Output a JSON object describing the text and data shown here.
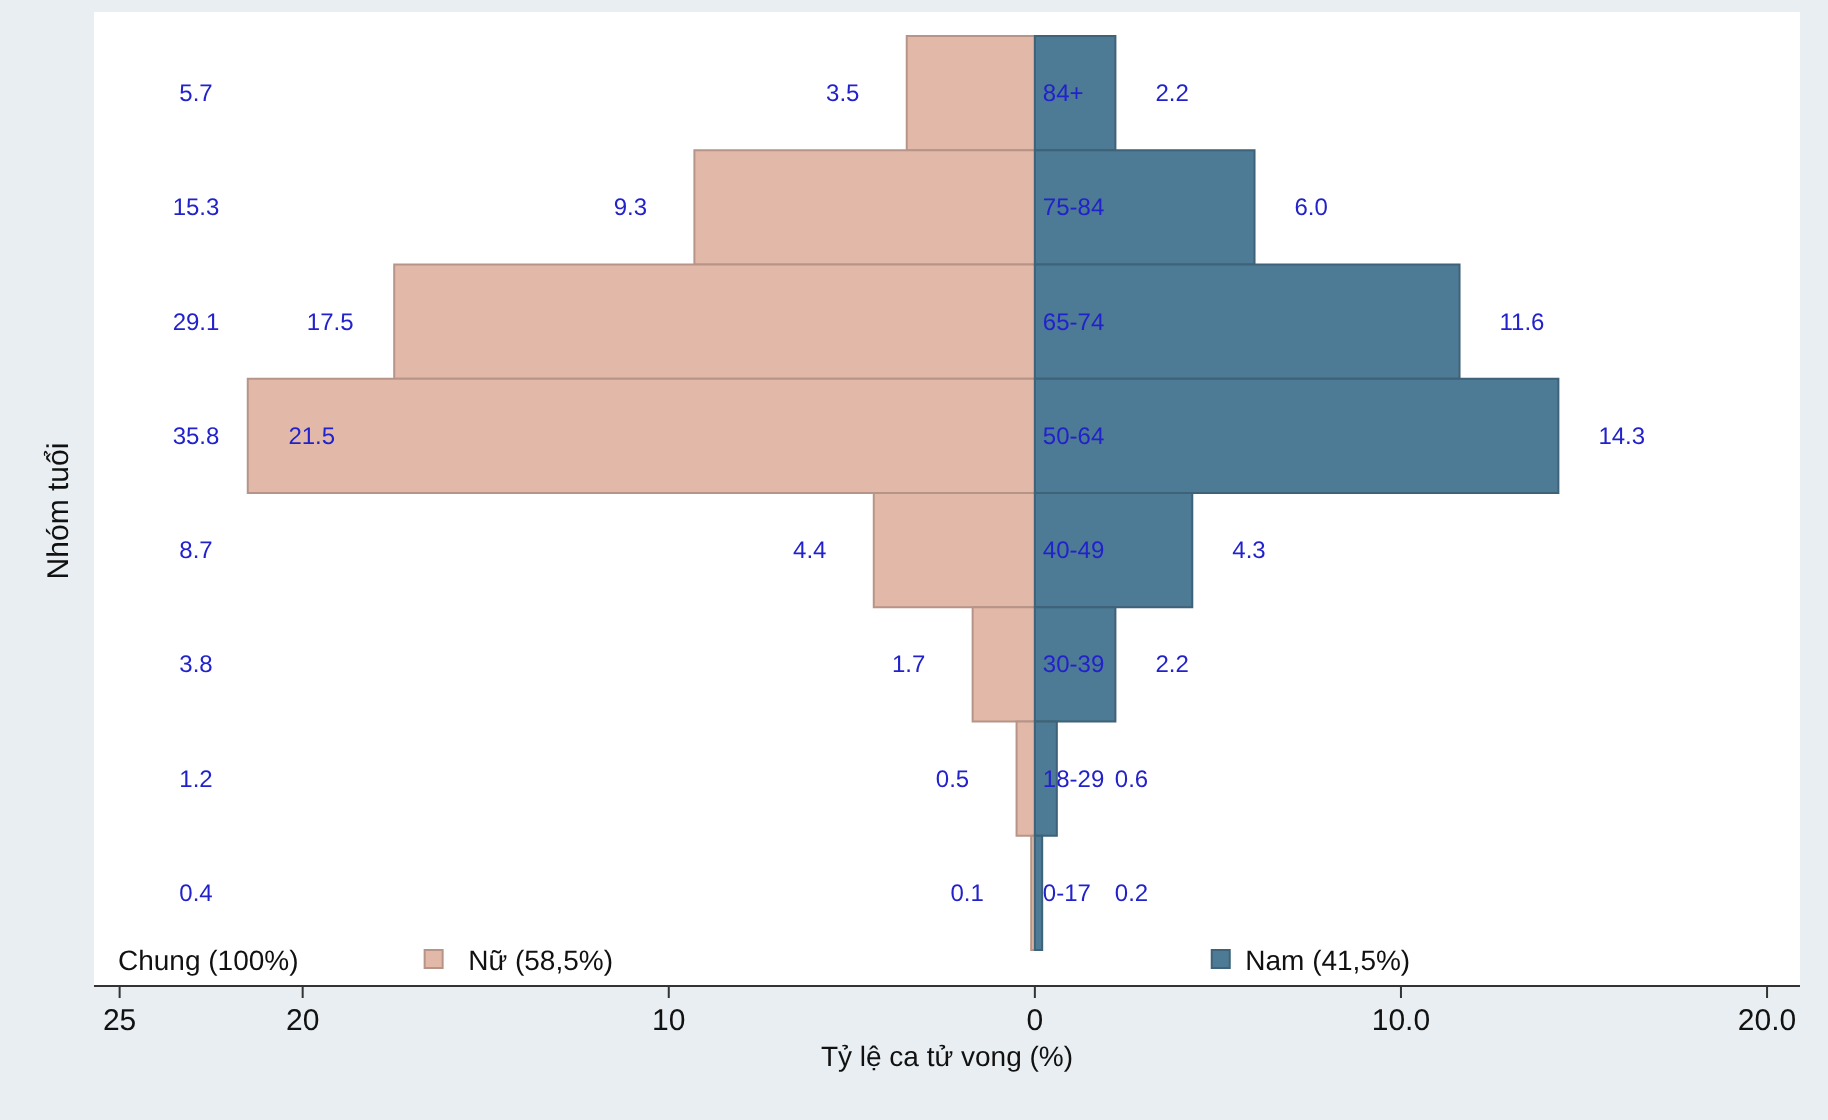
{
  "chart_data": {
    "type": "bar",
    "orientation": "horizontal",
    "stacked": true,
    "legend": "bottom",
    "xlabel": "Tỷ lệ ca tử vong (%)",
    "ylabel": "Nhóm tuổi",
    "categories": [
      "84+",
      "75-84",
      "65-74",
      "50-64",
      "40-49",
      "30-39",
      "18-29",
      "0-17"
    ],
    "xlim": [
      -25.7,
      20.9
    ],
    "xticks": [
      {
        "value": -25,
        "label": "25"
      },
      {
        "value": -20,
        "label": "20"
      },
      {
        "value": -10,
        "label": "10"
      },
      0,
      {
        "value": 10,
        "label": "10.0"
      },
      {
        "value": 20,
        "label": "20.0"
      }
    ],
    "series": [
      {
        "name": "Nữ (58,5%)",
        "color": "#e2b9a8",
        "values": [
          -3.5,
          -9.3,
          -17.5,
          -21.5,
          -4.4,
          -1.7,
          -0.5,
          -0.1
        ]
      },
      {
        "name": "Nam (41,5%)",
        "color": "#4d7a94",
        "values": [
          2.2,
          6.0,
          11.6,
          14.3,
          4.3,
          2.2,
          0.6,
          0.2
        ],
        "value_labels": [
          "2.2",
          "6.0",
          "11.6",
          "14.3",
          "4.3",
          "2.2",
          "0.6",
          "0.2"
        ]
      }
    ],
    "annotations": [
      "Chung (100%)",
      "5.7",
      "15.3",
      "29.1",
      "35.8",
      "8.7",
      "3.8",
      "1.2",
      "0.4",
      {
        "text": "3.5",
        "x": -3.5,
        "y": "84+"
      },
      {
        "text": "9.3",
        "x": -9.3,
        "y": "75-84"
      },
      {
        "text": "17.5",
        "x": -17.5,
        "y": "65-74"
      },
      {
        "text": "21.5",
        "x": -21.5,
        "y": "50-64"
      },
      {
        "text": "4.4",
        "x": -4.4,
        "y": "40-49"
      },
      {
        "text": "1.7",
        "x": -1.7,
        "y": "30-39"
      },
      {
        "text": "0.5",
        "x": -0.5,
        "y": "18-29"
      },
      {
        "text": "0.1",
        "x": -0.1,
        "y": "0-17"
      }
    ]
  }
}
